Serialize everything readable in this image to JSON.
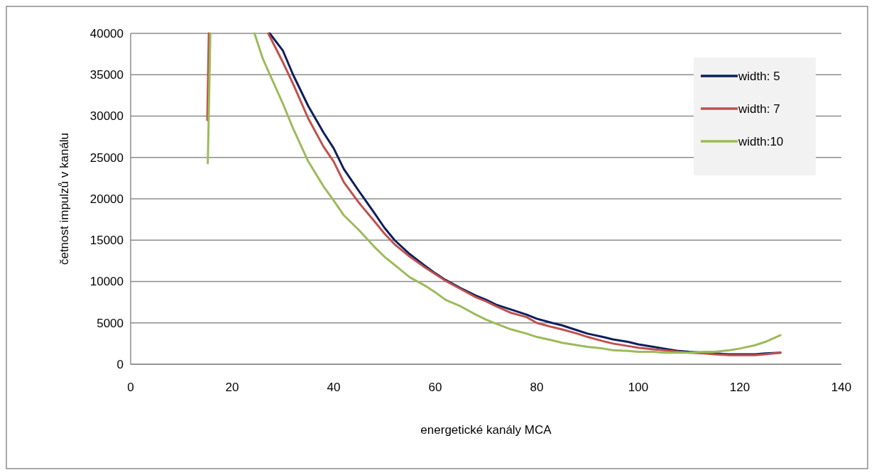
{
  "chart_data": {
    "type": "line",
    "xlabel": "energetické kanály MCA",
    "ylabel": "četnost impulzů v kanálu",
    "xlim": [
      0,
      140
    ],
    "ylim": [
      0,
      40000
    ],
    "xticks": [
      0,
      20,
      40,
      60,
      80,
      100,
      120,
      140
    ],
    "yticks": [
      0,
      5000,
      10000,
      15000,
      20000,
      25000,
      30000,
      35000,
      40000
    ],
    "grid": "y",
    "legend": "top right",
    "marker": "none",
    "line_style": "solid",
    "series": [
      {
        "name": "width: 5",
        "color": "#0d1f5c",
        "x": [
          27.4,
          30,
          32,
          35,
          38,
          40,
          42,
          45,
          48,
          50,
          52,
          55,
          58,
          60,
          62,
          65,
          68,
          70,
          72,
          75,
          78,
          80,
          83,
          85,
          88,
          90,
          93,
          95,
          98,
          100,
          103,
          105,
          108,
          110,
          113,
          115,
          118,
          120,
          123,
          125,
          128
        ],
        "values": [
          40000,
          37900,
          35000,
          31200,
          28000,
          26100,
          23600,
          20900,
          18300,
          16500,
          15000,
          13300,
          11900,
          11000,
          10200,
          9200,
          8300,
          7800,
          7200,
          6600,
          6000,
          5500,
          5000,
          4700,
          4100,
          3700,
          3300,
          3000,
          2700,
          2400,
          2100,
          1900,
          1600,
          1500,
          1400,
          1300,
          1200,
          1200,
          1200,
          1300,
          1400
        ]
      },
      {
        "name": "width: 7",
        "color": "#c0504d",
        "x": [
          15.1,
          15.4,
          null,
          27.1,
          30,
          32,
          35,
          38,
          40,
          42,
          45,
          48,
          50,
          52,
          55,
          58,
          60,
          62,
          65,
          68,
          70,
          72,
          75,
          78,
          80,
          83,
          85,
          88,
          90,
          93,
          95,
          98,
          100,
          103,
          105,
          108,
          110,
          113,
          115,
          118,
          120,
          123,
          125,
          128
        ],
        "values": [
          29500,
          40000,
          null,
          40000,
          36500,
          33900,
          29700,
          26300,
          24500,
          22000,
          19500,
          17300,
          15800,
          14500,
          13000,
          11700,
          10900,
          10100,
          9100,
          8100,
          7600,
          7000,
          6200,
          5700,
          5000,
          4500,
          4200,
          3700,
          3300,
          2800,
          2500,
          2200,
          2000,
          1800,
          1700,
          1500,
          1400,
          1300,
          1200,
          1100,
          1100,
          1100,
          1200,
          1400
        ]
      },
      {
        "name": "width:10",
        "color": "#9bbb59",
        "x": [
          15.2,
          15.7,
          null,
          24.4,
          26,
          27,
          30,
          32,
          35,
          38,
          40,
          42,
          45,
          48,
          50,
          52,
          55,
          58,
          60,
          62,
          65,
          68,
          70,
          72,
          75,
          78,
          80,
          83,
          85,
          88,
          90,
          93,
          95,
          98,
          100,
          103,
          105,
          108,
          110,
          113,
          115,
          118,
          120,
          123,
          125,
          128
        ],
        "values": [
          24300,
          40000,
          null,
          40000,
          37000,
          35600,
          31500,
          28500,
          24500,
          21500,
          19800,
          18000,
          16200,
          14200,
          13000,
          12000,
          10500,
          9500,
          8700,
          7800,
          7000,
          6000,
          5400,
          4900,
          4200,
          3700,
          3300,
          2900,
          2600,
          2300,
          2100,
          1900,
          1700,
          1600,
          1500,
          1500,
          1400,
          1400,
          1400,
          1500,
          1500,
          1700,
          1900,
          2300,
          2700,
          3500
        ]
      }
    ]
  }
}
